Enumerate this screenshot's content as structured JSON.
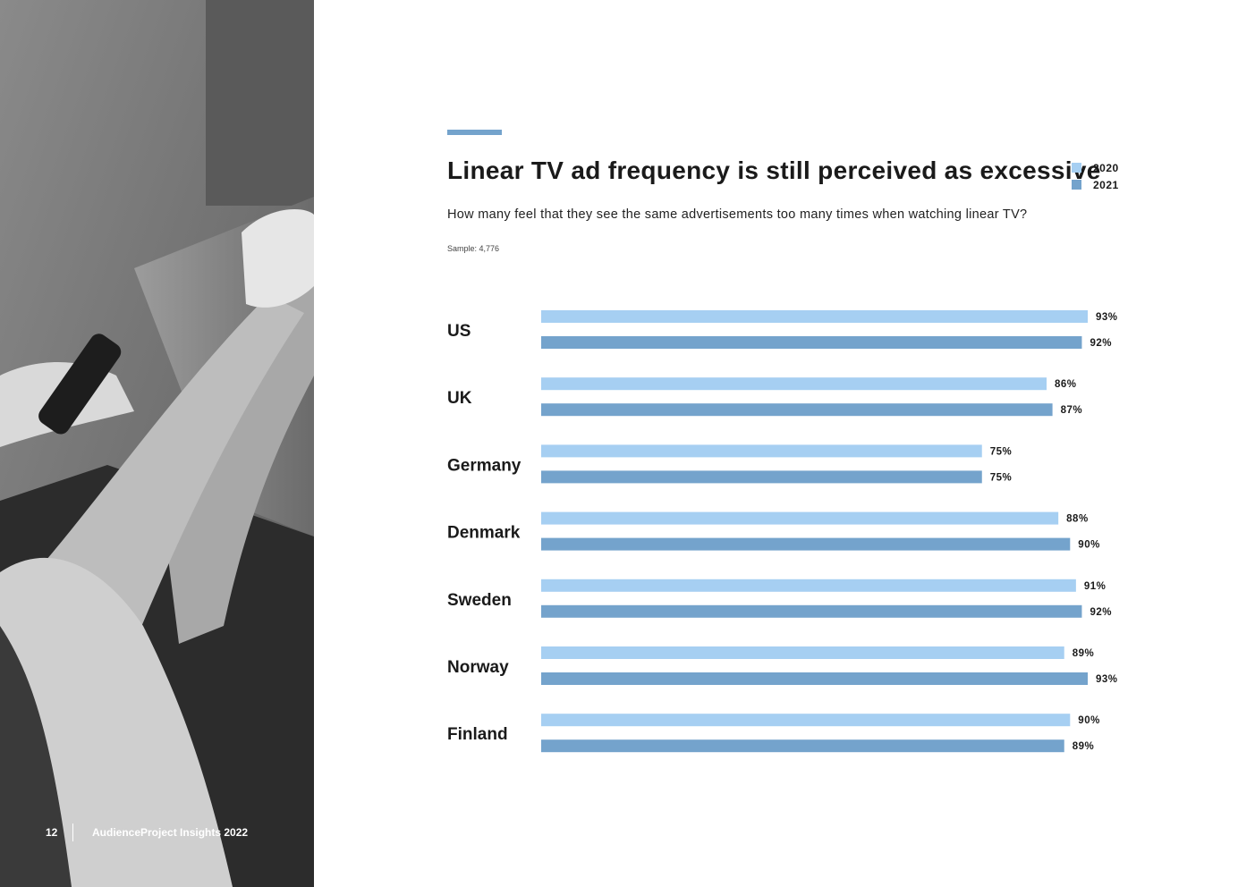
{
  "page": {
    "number": "12",
    "publication": "AudienceProject Insights 2022"
  },
  "header": {
    "title": "Linear TV ad frequency is still perceived as excessive",
    "subtitle": "How many feel that they see the same advertisements too many times when watching linear TV?",
    "sample": "Sample: 4,776"
  },
  "colors": {
    "accent": "#74a3cc",
    "series_2020": "#a6cff2",
    "series_2021": "#74a3cc"
  },
  "chart_data": {
    "type": "bar",
    "orientation": "horizontal",
    "categories": [
      "US",
      "UK",
      "Germany",
      "Denmark",
      "Sweden",
      "Norway",
      "Finland"
    ],
    "series": [
      {
        "name": "2020",
        "values": [
          93,
          86,
          75,
          88,
          91,
          89,
          90
        ]
      },
      {
        "name": "2021",
        "values": [
          92,
          87,
          75,
          90,
          92,
          93,
          89
        ]
      }
    ],
    "value_suffix": "%",
    "xlim": [
      0,
      100
    ],
    "grid": false,
    "legend": "top-right"
  }
}
